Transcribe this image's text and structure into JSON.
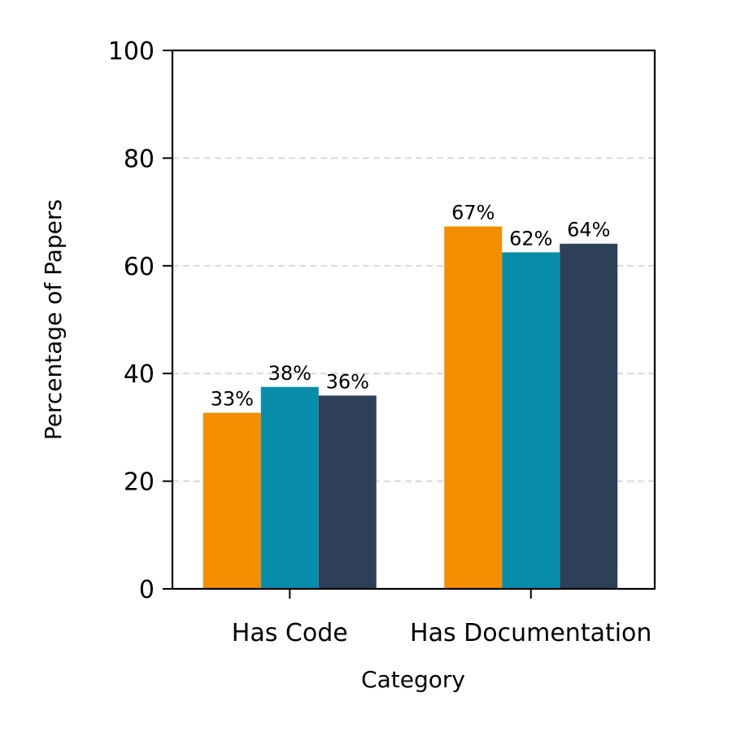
{
  "chart_data": {
    "type": "bar",
    "title": "",
    "xlabel": "Category",
    "ylabel": "Percentage of Papers",
    "categories": [
      "Has Code",
      "Has Documentation"
    ],
    "series": [
      {
        "values": [
          32.7,
          67.3
        ],
        "labels": [
          "33%",
          "67%"
        ],
        "color": "#F28E00"
      },
      {
        "values": [
          37.5,
          62.5
        ],
        "labels": [
          "38%",
          "62%"
        ],
        "color": "#078DAA"
      },
      {
        "values": [
          35.9,
          64.1
        ],
        "labels": [
          "36%",
          "64%"
        ],
        "color": "#2E4057"
      }
    ],
    "ylim": [
      0,
      100
    ],
    "yticks": [
      0,
      20,
      40,
      60,
      80,
      100
    ],
    "grid": "horizontal dashed"
  }
}
